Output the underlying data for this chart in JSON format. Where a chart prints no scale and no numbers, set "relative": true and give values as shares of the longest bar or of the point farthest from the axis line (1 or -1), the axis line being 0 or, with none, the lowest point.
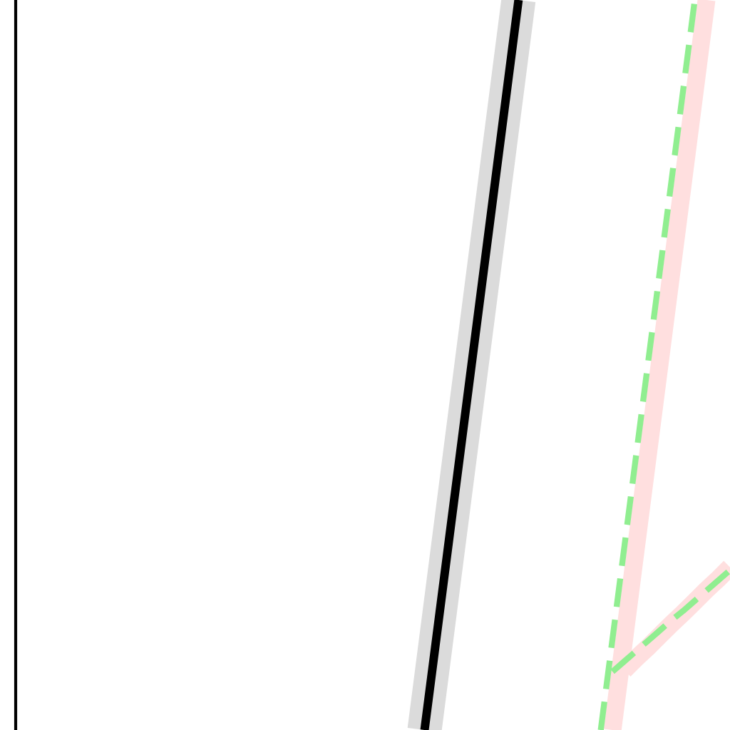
{
  "chart_data": {
    "type": "line",
    "relative": true,
    "line_style": "solid",
    "categories": [
      null,
      null,
      null,
      null,
      null,
      null,
      null,
      null,
      null,
      null,
      null,
      null,
      null,
      null,
      null,
      null,
      null,
      null,
      null,
      null,
      null,
      null,
      null,
      null,
      null,
      null,
      null,
      null,
      null,
      null,
      null,
      null,
      null,
      null,
      null,
      null,
      null,
      null,
      null,
      null,
      null,
      null,
      null,
      null,
      null,
      null,
      null,
      null,
      null,
      null,
      null,
      null,
      null,
      null,
      null,
      null,
      null,
      null,
      null,
      null,
      null
    ],
    "series": [
      {
        "color": "#dbdbdb",
        "values": [
          null,
          null,
          null,
          null,
          null,
          null,
          null,
          null,
          null,
          null,
          null,
          null,
          null,
          null,
          null,
          null,
          null,
          null,
          null,
          null,
          null,
          null,
          null,
          null,
          null,
          null,
          null,
          null,
          null,
          null,
          null,
          null,
          null,
          null,
          0,
          0.125,
          0.25,
          0.375,
          0.5,
          0.625,
          0.75,
          0.875,
          1,
          null,
          null,
          null,
          null,
          null,
          null,
          null,
          null,
          null,
          null,
          null,
          null,
          null,
          null,
          null,
          null,
          null,
          null
        ]
      },
      {
        "color": "#000000",
        "values": [
          null,
          null,
          null,
          null,
          null,
          null,
          null,
          null,
          null,
          null,
          null,
          null,
          null,
          null,
          null,
          null,
          null,
          null,
          null,
          null,
          null,
          null,
          null,
          null,
          null,
          null,
          null,
          null,
          null,
          null,
          null,
          null,
          null,
          null,
          0,
          0.125,
          0.25,
          0.375,
          0.5,
          0.625,
          0.75,
          0.875,
          1,
          null,
          null,
          null,
          null,
          null,
          null,
          null,
          null,
          null,
          null,
          null,
          null,
          null,
          null,
          null,
          null,
          null,
          null
        ]
      },
      {
        "color": "#ffdfdf",
        "values": [
          null,
          null,
          null,
          null,
          null,
          null,
          null,
          null,
          null,
          null,
          null,
          null,
          null,
          null,
          null,
          null,
          null,
          null,
          null,
          null,
          null,
          null,
          null,
          null,
          null,
          null,
          null,
          null,
          null,
          null,
          null,
          null,
          null,
          null,
          null,
          null,
          null,
          null,
          null,
          null,
          null,
          null,
          null,
          null,
          null,
          null,
          null,
          null,
          null,
          null,
          null,
          0.082,
          0.098,
          0.113,
          0.129,
          0.145,
          0.16,
          0.176,
          0.192,
          0.207,
          0.223
        ]
      },
      {
        "color": "#ffdfdf",
        "values": [
          null,
          null,
          null,
          null,
          null,
          null,
          null,
          null,
          null,
          null,
          null,
          null,
          null,
          null,
          null,
          null,
          null,
          null,
          null,
          null,
          null,
          null,
          null,
          null,
          null,
          null,
          null,
          null,
          null,
          null,
          null,
          null,
          null,
          null,
          null,
          null,
          null,
          null,
          null,
          null,
          null,
          null,
          null,
          null,
          null,
          null,
          null,
          null,
          null,
          null,
          0,
          0.125,
          0.25,
          0.375,
          0.5,
          0.625,
          0.75,
          0.875,
          1,
          null,
          null
        ]
      },
      {
        "color": "#90ee90",
        "line_style": "dashed",
        "values": [
          null,
          null,
          null,
          null,
          null,
          null,
          null,
          null,
          null,
          null,
          null,
          null,
          null,
          null,
          null,
          null,
          null,
          null,
          null,
          null,
          null,
          null,
          null,
          null,
          null,
          null,
          null,
          null,
          null,
          null,
          null,
          null,
          null,
          null,
          null,
          null,
          null,
          null,
          null,
          null,
          null,
          null,
          null,
          null,
          null,
          null,
          null,
          null,
          null,
          null,
          0.08,
          0.094,
          0.108,
          0.122,
          0.136,
          0.15,
          0.163,
          0.177,
          0.191,
          0.205,
          0.219
        ]
      },
      {
        "color": "#90ee90",
        "line_style": "dashed",
        "values": [
          null,
          null,
          null,
          null,
          null,
          null,
          null,
          null,
          null,
          null,
          null,
          null,
          null,
          null,
          null,
          null,
          null,
          null,
          null,
          null,
          null,
          null,
          null,
          null,
          null,
          null,
          null,
          null,
          null,
          null,
          null,
          null,
          null,
          null,
          null,
          null,
          null,
          null,
          null,
          null,
          null,
          null,
          null,
          null,
          null,
          null,
          null,
          null,
          null,
          0,
          0.125,
          0.25,
          0.375,
          0.5,
          0.625,
          0.75,
          0.875,
          1,
          null,
          null,
          null
        ]
      }
    ]
  }
}
